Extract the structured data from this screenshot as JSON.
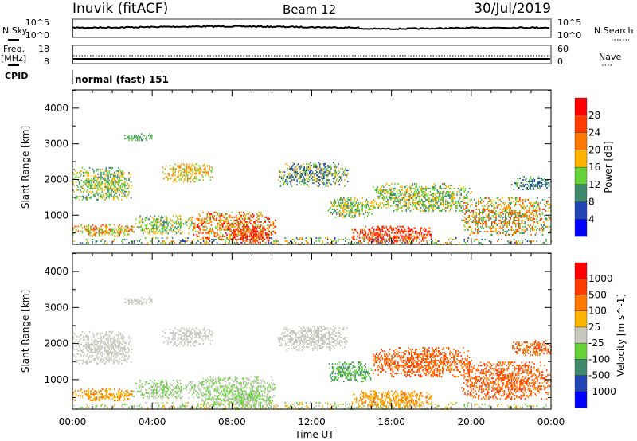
{
  "header": {
    "station": "Inuvik (fitACF)",
    "beam": "Beam 12",
    "date": "30/Jul/2019"
  },
  "top_panels": {
    "nsky_label": "N.Sky",
    "nsearch_label": "N.Search",
    "nsky_ticks": [
      "10^5",
      "10^0"
    ],
    "nsearch_ticks": [
      "10^5",
      "10^0"
    ],
    "freq_label": "Freq.",
    "freq_unit": "[MHz]",
    "freq_ticks": [
      "18",
      "8"
    ],
    "nave_label": "Nave",
    "nave_ticks": [
      "60",
      "0"
    ],
    "cpid_label": "CPID",
    "cpid_value": "normal (fast) 151"
  },
  "chart_data": [
    {
      "type": "heatmap",
      "title": "Power",
      "ylabel": "Slant Range [km]",
      "xlabel": "Time UT",
      "x_ticks": [
        "00:00",
        "04:00",
        "08:00",
        "12:00",
        "16:00",
        "20:00",
        "00:00"
      ],
      "xlim_hours": [
        0,
        24
      ],
      "y_ticks": [
        "1000",
        "2000",
        "3000",
        "4000"
      ],
      "ylim": [
        180,
        4510
      ],
      "colorbar": {
        "label": "Power [dB]",
        "ticks": [
          "4",
          "8",
          "12",
          "16",
          "20",
          "24",
          "28"
        ],
        "colors": [
          "#0000ff",
          "#2244b4",
          "#3f8a6c",
          "#66d23a",
          "#ffb400",
          "#ff7800",
          "#ff3c00",
          "#ff0000"
        ]
      },
      "echo_regions": [
        {
          "t": [
            0,
            3
          ],
          "r": [
            1450,
            2350
          ],
          "level": [
            2,
            4
          ]
        },
        {
          "t": [
            0,
            3
          ],
          "r": [
            400,
            750
          ],
          "level": [
            3,
            6
          ]
        },
        {
          "t": [
            0,
            24
          ],
          "r": [
            180,
            380
          ],
          "level": [
            1,
            5
          ]
        },
        {
          "t": [
            2.6,
            4
          ],
          "r": [
            3100,
            3300
          ],
          "level": [
            2,
            3
          ]
        },
        {
          "t": [
            4.5,
            7
          ],
          "r": [
            1950,
            2450
          ],
          "level": [
            3,
            5
          ]
        },
        {
          "t": [
            3,
            6
          ],
          "r": [
            500,
            1000
          ],
          "level": [
            2,
            4
          ]
        },
        {
          "t": [
            6,
            10.2
          ],
          "r": [
            300,
            1100
          ],
          "level": [
            3,
            7
          ]
        },
        {
          "t": [
            8,
            10
          ],
          "r": [
            250,
            700
          ],
          "level": [
            5,
            7
          ]
        },
        {
          "t": [
            10.3,
            13.8
          ],
          "r": [
            1800,
            2500
          ],
          "level": [
            1,
            4
          ]
        },
        {
          "t": [
            12.8,
            15
          ],
          "r": [
            950,
            1500
          ],
          "level": [
            2,
            4
          ]
        },
        {
          "t": [
            14,
            18
          ],
          "r": [
            250,
            700
          ],
          "level": [
            5,
            7
          ]
        },
        {
          "t": [
            15,
            20
          ],
          "r": [
            1100,
            1900
          ],
          "level": [
            2,
            4
          ]
        },
        {
          "t": [
            19.5,
            24
          ],
          "r": [
            450,
            1500
          ],
          "level": [
            2,
            6
          ]
        },
        {
          "t": [
            22,
            24
          ],
          "r": [
            1700,
            2100
          ],
          "level": [
            1,
            3
          ]
        }
      ]
    },
    {
      "type": "heatmap",
      "title": "Velocity",
      "ylabel": "Slant Range [km]",
      "xlabel": "Time UT",
      "x_ticks": [
        "00:00",
        "04:00",
        "08:00",
        "12:00",
        "16:00",
        "20:00",
        "00:00"
      ],
      "xlim_hours": [
        0,
        24
      ],
      "y_ticks": [
        "1000",
        "2000",
        "3000",
        "4000"
      ],
      "ylim": [
        180,
        4510
      ],
      "colorbar": {
        "label": "Velocity [m s^-1]",
        "ticks": [
          "1000",
          "500",
          "100",
          "25",
          "-25",
          "-100",
          "-500",
          "-1000"
        ],
        "colors": [
          "#0000ff",
          "#2244b4",
          "#3f8a6c",
          "#66d23a",
          "#c8c8be",
          "#ffb400",
          "#ff7800",
          "#ff3c00",
          "#ff0000"
        ]
      },
      "echo_regions": [
        {
          "t": [
            0,
            3
          ],
          "r": [
            1450,
            2350
          ],
          "level": [
            4,
            4
          ]
        },
        {
          "t": [
            0,
            3
          ],
          "r": [
            400,
            750
          ],
          "level": [
            5,
            6
          ]
        },
        {
          "t": [
            0,
            24
          ],
          "r": [
            180,
            380
          ],
          "level": [
            3,
            5
          ]
        },
        {
          "t": [
            2.6,
            4
          ],
          "r": [
            3100,
            3300
          ],
          "level": [
            4,
            4
          ]
        },
        {
          "t": [
            4.5,
            7
          ],
          "r": [
            1950,
            2450
          ],
          "level": [
            4,
            4
          ]
        },
        {
          "t": [
            3,
            6
          ],
          "r": [
            500,
            1000
          ],
          "level": [
            3,
            4
          ]
        },
        {
          "t": [
            6,
            10.2
          ],
          "r": [
            300,
            1100
          ],
          "level": [
            3,
            4
          ]
        },
        {
          "t": [
            8,
            10
          ],
          "r": [
            250,
            700
          ],
          "level": [
            3,
            4
          ]
        },
        {
          "t": [
            10.3,
            13.8
          ],
          "r": [
            1800,
            2500
          ],
          "level": [
            4,
            4
          ]
        },
        {
          "t": [
            12.8,
            15
          ],
          "r": [
            950,
            1500
          ],
          "level": [
            2,
            3
          ]
        },
        {
          "t": [
            14,
            18
          ],
          "r": [
            250,
            700
          ],
          "level": [
            5,
            6
          ]
        },
        {
          "t": [
            15,
            20
          ],
          "r": [
            1100,
            1900
          ],
          "level": [
            6,
            7
          ]
        },
        {
          "t": [
            19.5,
            24
          ],
          "r": [
            450,
            1500
          ],
          "level": [
            6,
            7
          ]
        },
        {
          "t": [
            22,
            24
          ],
          "r": [
            1700,
            2100
          ],
          "level": [
            6,
            7
          ]
        }
      ]
    }
  ]
}
